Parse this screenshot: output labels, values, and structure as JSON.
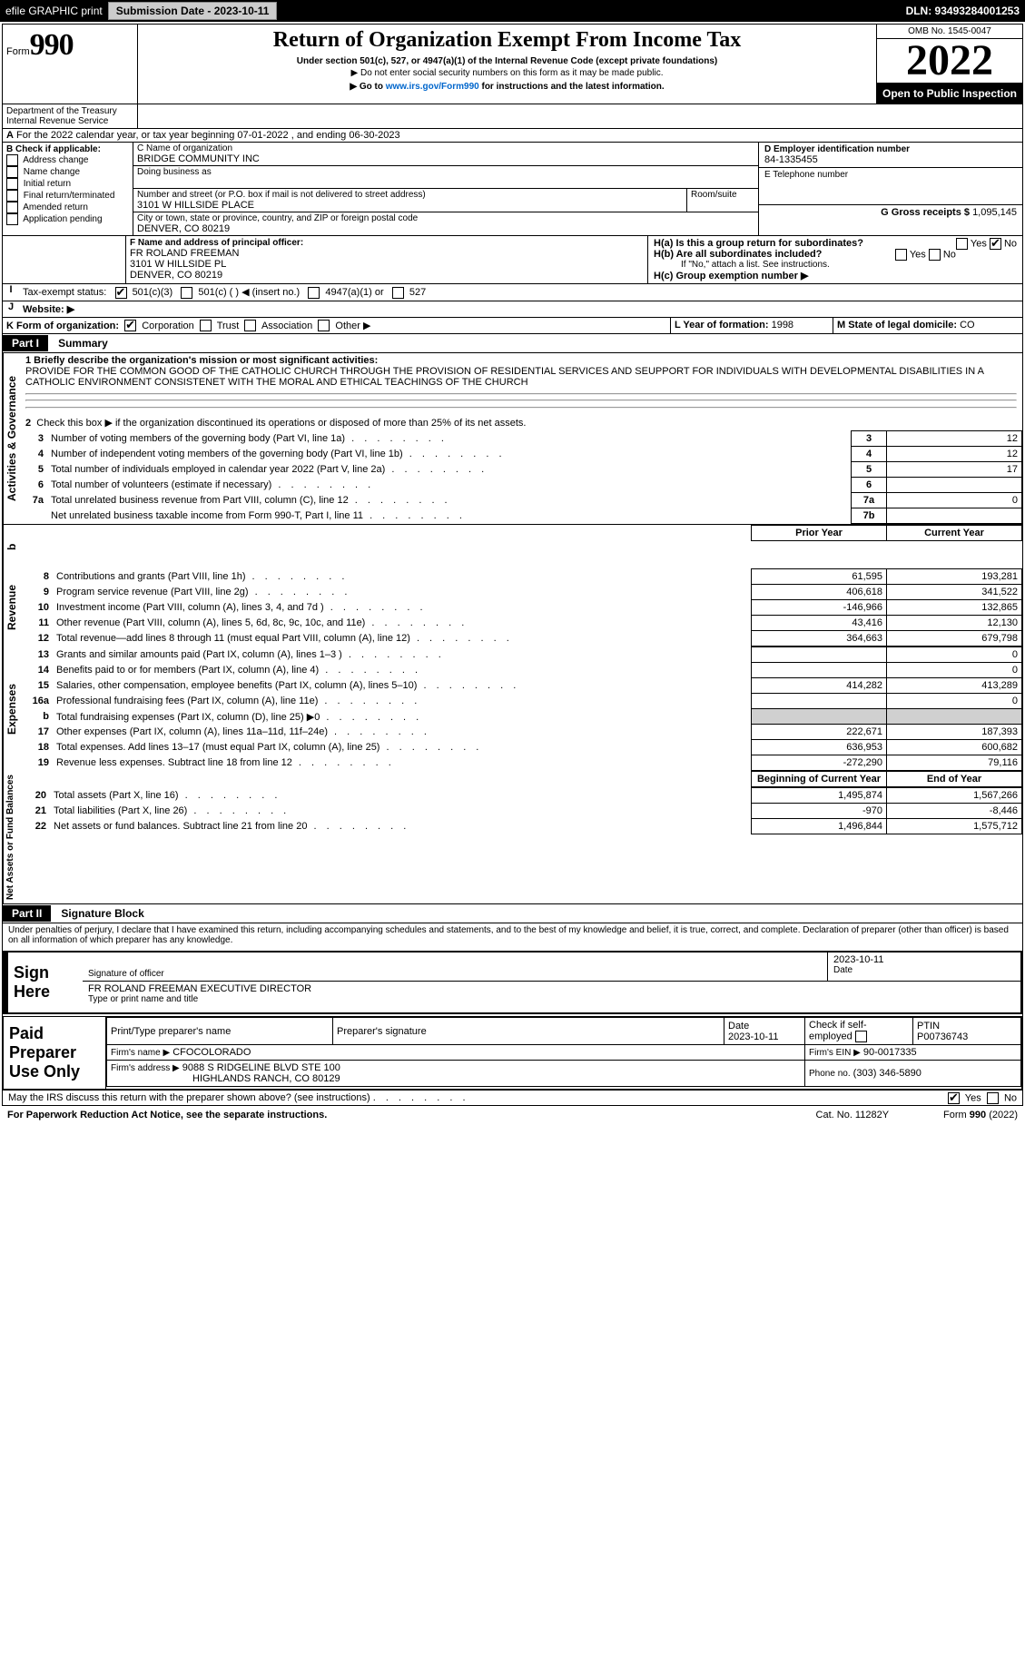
{
  "topbar": {
    "efile": "efile GRAPHIC print",
    "subdate_lbl": "Submission Date - 2023-10-11",
    "dln": "DLN: 93493284001253"
  },
  "header": {
    "form_prefix": "Form",
    "form_no": "990",
    "title": "Return of Organization Exempt From Income Tax",
    "sub": "Under section 501(c), 527, or 4947(a)(1) of the Internal Revenue Code (except private foundations)",
    "sub2": "▶ Do not enter social security numbers on this form as it may be made public.",
    "sub3": "▶ Go to www.irs.gov/Form990 for instructions and the latest information.",
    "irs_link": "www.irs.gov/Form990",
    "omb": "OMB No. 1545-0047",
    "year": "2022",
    "inspect": "Open to Public Inspection",
    "dept": "Department of the Treasury",
    "irs": "Internal Revenue Service"
  },
  "periodA": "For the 2022 calendar year, or tax year beginning 07-01-2022    , and ending 06-30-2023",
  "boxB": {
    "lbl": "B Check if applicable:",
    "items": [
      "Address change",
      "Name change",
      "Initial return",
      "Final return/terminated",
      "Amended return",
      "Application pending"
    ]
  },
  "boxC": {
    "name_lbl": "C Name of organization",
    "name": "BRIDGE COMMUNITY INC",
    "dba_lbl": "Doing business as",
    "street_lbl": "Number and street (or P.O. box if mail is not delivered to street address)",
    "room_lbl": "Room/suite",
    "street": "3101 W HILLSIDE PLACE",
    "city_lbl": "City or town, state or province, country, and ZIP or foreign postal code",
    "city": "DENVER, CO  80219"
  },
  "boxD": {
    "lbl": "D Employer identification number",
    "val": "84-1335455"
  },
  "boxE": {
    "lbl": "E Telephone number"
  },
  "boxG": {
    "lbl": "G Gross receipts $",
    "val": "1,095,145"
  },
  "boxF": {
    "lbl": "F  Name and address of principal officer:",
    "name": "FR ROLAND FREEMAN",
    "addr1": "3101 W HILLSIDE PL",
    "addr2": "DENVER, CO  80219"
  },
  "boxH": {
    "ha": "H(a)  Is this a group return for subordinates?",
    "hano": "No",
    "hayes": "Yes",
    "hb": "H(b)  Are all subordinates included?",
    "hbnote": "If \"No,\" attach a list. See instructions.",
    "hc": "H(c)  Group exemption number ▶"
  },
  "boxI": {
    "lbl": "Tax-exempt status:",
    "items": [
      "501(c)(3)",
      "501(c) (   ) ◀ (insert no.)",
      "4947(a)(1) or",
      "527"
    ]
  },
  "boxJ": {
    "lbl": "Website: ▶"
  },
  "boxK": {
    "lbl": "K Form of organization:",
    "items": [
      "Corporation",
      "Trust",
      "Association",
      "Other ▶"
    ]
  },
  "boxL": {
    "lbl": "L Year of formation:",
    "val": "1998"
  },
  "boxM": {
    "lbl": "M State of legal domicile:",
    "val": "CO"
  },
  "part1": {
    "label": "Part I",
    "title": "Summary"
  },
  "summary": {
    "l1": "1  Briefly describe the organization's mission or most significant activities:",
    "mission": "PROVIDE FOR THE COMMON GOOD OF THE CATHOLIC CHURCH THROUGH THE PROVISION OF RESIDENTIAL SERVICES AND SEUPPORT FOR INDIVIDUALS WITH DEVELOPMENTAL DISABILITIES IN A CATHOLIC ENVIRONMENT CONSISTENET WITH THE MORAL AND ETHICAL TEACHINGS OF THE CHURCH",
    "l2": "Check this box ▶        if the organization discontinued its operations or disposed of more than 25% of its net assets.",
    "rows_ag": [
      {
        "n": "3",
        "t": "Number of voting members of the governing body (Part VI, line 1a)",
        "box": "3",
        "v": "12"
      },
      {
        "n": "4",
        "t": "Number of independent voting members of the governing body (Part VI, line 1b)",
        "box": "4",
        "v": "12"
      },
      {
        "n": "5",
        "t": "Total number of individuals employed in calendar year 2022 (Part V, line 2a)",
        "box": "5",
        "v": "17"
      },
      {
        "n": "6",
        "t": "Total number of volunteers (estimate if necessary)",
        "box": "6",
        "v": ""
      },
      {
        "n": "7a",
        "t": "Total unrelated business revenue from Part VIII, column (C), line 12",
        "box": "7a",
        "v": "0"
      },
      {
        "n": "",
        "t": "Net unrelated business taxable income from Form 990-T, Part I, line 11",
        "box": "7b",
        "v": ""
      }
    ],
    "head_prior": "Prior Year",
    "head_curr": "Current Year",
    "revenue": [
      {
        "n": "8",
        "t": "Contributions and grants (Part VIII, line 1h)",
        "p": "61,595",
        "c": "193,281"
      },
      {
        "n": "9",
        "t": "Program service revenue (Part VIII, line 2g)",
        "p": "406,618",
        "c": "341,522"
      },
      {
        "n": "10",
        "t": "Investment income (Part VIII, column (A), lines 3, 4, and 7d )",
        "p": "-146,966",
        "c": "132,865"
      },
      {
        "n": "11",
        "t": "Other revenue (Part VIII, column (A), lines 5, 6d, 8c, 9c, 10c, and 11e)",
        "p": "43,416",
        "c": "12,130"
      },
      {
        "n": "12",
        "t": "Total revenue—add lines 8 through 11 (must equal Part VIII, column (A), line 12)",
        "p": "364,663",
        "c": "679,798"
      }
    ],
    "expenses": [
      {
        "n": "13",
        "t": "Grants and similar amounts paid (Part IX, column (A), lines 1–3 )",
        "p": "",
        "c": "0"
      },
      {
        "n": "14",
        "t": "Benefits paid to or for members (Part IX, column (A), line 4)",
        "p": "",
        "c": "0"
      },
      {
        "n": "15",
        "t": "Salaries, other compensation, employee benefits (Part IX, column (A), lines 5–10)",
        "p": "414,282",
        "c": "413,289"
      },
      {
        "n": "16a",
        "t": "Professional fundraising fees (Part IX, column (A), line 11e)",
        "p": "",
        "c": "0"
      },
      {
        "n": "b",
        "t": "Total fundraising expenses (Part IX, column (D), line 25) ▶0",
        "p": "GRAY",
        "c": "GRAY"
      },
      {
        "n": "17",
        "t": "Other expenses (Part IX, column (A), lines 11a–11d, 11f–24e)",
        "p": "222,671",
        "c": "187,393"
      },
      {
        "n": "18",
        "t": "Total expenses. Add lines 13–17 (must equal Part IX, column (A), line 25)",
        "p": "636,953",
        "c": "600,682"
      },
      {
        "n": "19",
        "t": "Revenue less expenses. Subtract line 18 from line 12",
        "p": "-272,290",
        "c": "79,116"
      }
    ],
    "head_beg": "Beginning of Current Year",
    "head_end": "End of Year",
    "netassets": [
      {
        "n": "20",
        "t": "Total assets (Part X, line 16)",
        "p": "1,495,874",
        "c": "1,567,266"
      },
      {
        "n": "21",
        "t": "Total liabilities (Part X, line 26)",
        "p": "-970",
        "c": "-8,446"
      },
      {
        "n": "22",
        "t": "Net assets or fund balances. Subtract line 21 from line 20",
        "p": "1,496,844",
        "c": "1,575,712"
      }
    ],
    "side_labels": {
      "ag": "Activities & Governance",
      "rev": "Revenue",
      "exp": "Expenses",
      "net": "Net Assets or Fund Balances"
    },
    "b_row": "b"
  },
  "part2": {
    "label": "Part II",
    "title": "Signature Block",
    "decl": "Under penalties of perjury, I declare that I have examined this return, including accompanying schedules and statements, and to the best of my knowledge and belief, it is true, correct, and complete. Declaration of preparer (other than officer) is based on all information of which preparer has any knowledge."
  },
  "sign": {
    "here": "Sign Here",
    "sig_lbl": "Signature of officer",
    "date_lbl": "Date",
    "date": "2023-10-11",
    "name": "FR ROLAND FREEMAN  EXECUTIVE DIRECTOR",
    "type_lbl": "Type or print name and title"
  },
  "paid": {
    "title": "Paid Preparer Use Only",
    "h1": "Print/Type preparer's name",
    "h2": "Preparer's signature",
    "h3": "Date",
    "h4": "Check         if self-employed",
    "h5": "PTIN",
    "date": "2023-10-11",
    "ptin": "P00736743",
    "firm_lbl": "Firm's name    ▶",
    "firm": "CFOCOLORADO",
    "ein_lbl": "Firm's EIN ▶",
    "ein": "90-0017335",
    "addr_lbl": "Firm's address ▶",
    "addr1": "9088 S RIDGELINE BLVD STE 100",
    "addr2": "HIGHLANDS RANCH, CO  80129",
    "phone_lbl": "Phone no.",
    "phone": "(303) 346-5890"
  },
  "footer": {
    "may": "May the IRS discuss this return with the preparer shown above? (see instructions)",
    "yes": "Yes",
    "no": "No",
    "pra": "For Paperwork Reduction Act Notice, see the separate instructions.",
    "cat": "Cat. No. 11282Y",
    "form": "Form 990 (2022)"
  },
  "dots": "   .    .    .    .    .    .    .    ."
}
